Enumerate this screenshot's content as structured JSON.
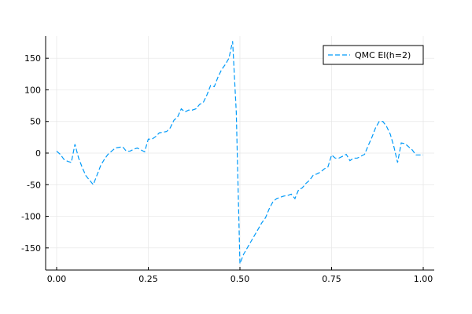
{
  "chart_data": {
    "type": "line",
    "title": "",
    "xlabel": "",
    "ylabel": "",
    "xlim": [
      -0.03,
      1.03
    ],
    "ylim": [
      -185,
      185
    ],
    "xticks": [
      0.0,
      0.25,
      0.5,
      0.75,
      1.0
    ],
    "xtick_labels": [
      "0.00",
      "0.25",
      "0.50",
      "0.75",
      "1.00"
    ],
    "yticks": [
      -150,
      -100,
      -50,
      0,
      50,
      100,
      150
    ],
    "ytick_labels": [
      "-150",
      "-100",
      "-50",
      "0",
      "50",
      "100",
      "150"
    ],
    "grid": true,
    "legend": {
      "position": "top-right"
    },
    "series": [
      {
        "name": "QMC EI(h=2)",
        "color": "#009af9",
        "dash": "dashed",
        "x": [
          0.0,
          0.01,
          0.02,
          0.03,
          0.04,
          0.05,
          0.06,
          0.07,
          0.08,
          0.09,
          0.1,
          0.11,
          0.12,
          0.13,
          0.14,
          0.15,
          0.16,
          0.17,
          0.18,
          0.19,
          0.2,
          0.21,
          0.22,
          0.23,
          0.24,
          0.25,
          0.26,
          0.27,
          0.28,
          0.29,
          0.3,
          0.31,
          0.32,
          0.33,
          0.34,
          0.35,
          0.36,
          0.37,
          0.38,
          0.39,
          0.4,
          0.41,
          0.42,
          0.43,
          0.44,
          0.45,
          0.46,
          0.47,
          0.48,
          0.49,
          0.5,
          0.51,
          0.52,
          0.53,
          0.54,
          0.55,
          0.56,
          0.57,
          0.58,
          0.59,
          0.6,
          0.61,
          0.62,
          0.63,
          0.64,
          0.65,
          0.66,
          0.67,
          0.68,
          0.69,
          0.7,
          0.71,
          0.72,
          0.73,
          0.74,
          0.75,
          0.76,
          0.77,
          0.78,
          0.79,
          0.8,
          0.81,
          0.82,
          0.83,
          0.84,
          0.85,
          0.86,
          0.87,
          0.88,
          0.89,
          0.9,
          0.91,
          0.92,
          0.93,
          0.94,
          0.95,
          0.96,
          0.97,
          0.98,
          0.99,
          1.0
        ],
        "y": [
          3,
          -2,
          -10,
          -13,
          -15,
          14,
          -8,
          -23,
          -36,
          -43,
          -50,
          -35,
          -20,
          -10,
          -2,
          3,
          8,
          9,
          10,
          3,
          3,
          6,
          8,
          5,
          2,
          22,
          22,
          26,
          32,
          33,
          34,
          40,
          52,
          57,
          70,
          65,
          68,
          68,
          70,
          77,
          80,
          92,
          107,
          105,
          120,
          132,
          140,
          150,
          177,
          65,
          -175,
          -160,
          -150,
          -140,
          -130,
          -120,
          -110,
          -102,
          -88,
          -77,
          -72,
          -70,
          -68,
          -67,
          -65,
          -72,
          -58,
          -55,
          -48,
          -43,
          -35,
          -33,
          -30,
          -25,
          -22,
          -3,
          -8,
          -8,
          -5,
          -2,
          -12,
          -8,
          -8,
          -5,
          -2,
          12,
          25,
          40,
          50,
          50,
          42,
          30,
          10,
          -15,
          16,
          15,
          10,
          5,
          -3,
          -3,
          -3
        ]
      }
    ]
  }
}
